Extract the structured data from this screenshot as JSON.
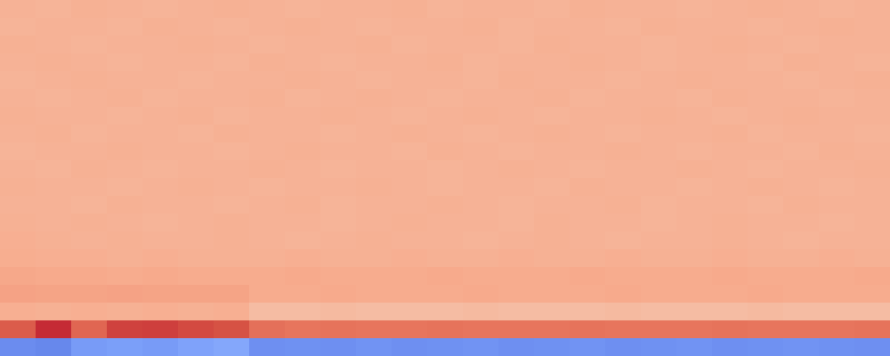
{
  "chart_data": {
    "type": "heatmap",
    "tick_labels": false,
    "zlim": [
      -1,
      1
    ],
    "z": [
      [
        0.36,
        0.35,
        0.37,
        0.36,
        0.35,
        0.36,
        0.37,
        0.36,
        0.35,
        0.36,
        0.36,
        0.37,
        0.35,
        0.36,
        0.36,
        0.35,
        0.37,
        0.36,
        0.36,
        0.35,
        0.36,
        0.37,
        0.36,
        0.35,
        0.36
      ],
      [
        0.35,
        0.36,
        0.36,
        0.35,
        0.37,
        0.36,
        0.35,
        0.36,
        0.37,
        0.36,
        0.35,
        0.36,
        0.36,
        0.37,
        0.35,
        0.36,
        0.36,
        0.35,
        0.37,
        0.36,
        0.36,
        0.35,
        0.36,
        0.37,
        0.36
      ],
      [
        0.37,
        0.36,
        0.35,
        0.36,
        0.36,
        0.37,
        0.36,
        0.35,
        0.36,
        0.36,
        0.37,
        0.35,
        0.36,
        0.36,
        0.35,
        0.37,
        0.36,
        0.36,
        0.35,
        0.36,
        0.37,
        0.36,
        0.35,
        0.36,
        0.36
      ],
      [
        0.36,
        0.37,
        0.36,
        0.35,
        0.36,
        0.36,
        0.35,
        0.37,
        0.36,
        0.35,
        0.36,
        0.36,
        0.37,
        0.35,
        0.36,
        0.36,
        0.37,
        0.36,
        0.35,
        0.36,
        0.36,
        0.35,
        0.37,
        0.36,
        0.35
      ],
      [
        0.35,
        0.36,
        0.37,
        0.36,
        0.36,
        0.35,
        0.36,
        0.36,
        0.37,
        0.36,
        0.35,
        0.36,
        0.36,
        0.35,
        0.37,
        0.36,
        0.36,
        0.35,
        0.36,
        0.37,
        0.36,
        0.36,
        0.35,
        0.36,
        0.37
      ],
      [
        0.36,
        0.35,
        0.36,
        0.37,
        0.35,
        0.36,
        0.36,
        0.37,
        0.35,
        0.36,
        0.37,
        0.36,
        0.35,
        0.36,
        0.36,
        0.37,
        0.35,
        0.36,
        0.36,
        0.35,
        0.37,
        0.36,
        0.36,
        0.35,
        0.36
      ],
      [
        0.37,
        0.36,
        0.36,
        0.35,
        0.36,
        0.37,
        0.35,
        0.36,
        0.36,
        0.37,
        0.36,
        0.35,
        0.36,
        0.37,
        0.36,
        0.35,
        0.36,
        0.36,
        0.37,
        0.36,
        0.35,
        0.36,
        0.37,
        0.36,
        0.36
      ],
      [
        0.36,
        0.37,
        0.35,
        0.36,
        0.36,
        0.35,
        0.37,
        0.36,
        0.36,
        0.35,
        0.36,
        0.37,
        0.36,
        0.35,
        0.36,
        0.37,
        0.36,
        0.35,
        0.36,
        0.36,
        0.37,
        0.35,
        0.36,
        0.36,
        0.35
      ],
      [
        0.35,
        0.36,
        0.36,
        0.37,
        0.36,
        0.36,
        0.35,
        0.36,
        0.37,
        0.36,
        0.36,
        0.35,
        0.37,
        0.36,
        0.35,
        0.36,
        0.36,
        0.37,
        0.36,
        0.35,
        0.36,
        0.36,
        0.35,
        0.37,
        0.36
      ],
      [
        0.36,
        0.35,
        0.37,
        0.36,
        0.35,
        0.36,
        0.36,
        0.37,
        0.36,
        0.35,
        0.36,
        0.36,
        0.35,
        0.36,
        0.37,
        0.36,
        0.35,
        0.36,
        0.36,
        0.37,
        0.36,
        0.35,
        0.36,
        0.36,
        0.37
      ],
      [
        0.37,
        0.36,
        0.36,
        0.35,
        0.36,
        0.37,
        0.36,
        0.35,
        0.36,
        0.36,
        0.37,
        0.36,
        0.35,
        0.36,
        0.36,
        0.35,
        0.37,
        0.36,
        0.36,
        0.35,
        0.36,
        0.37,
        0.36,
        0.35,
        0.36
      ],
      [
        0.36,
        0.36,
        0.35,
        0.37,
        0.36,
        0.36,
        0.35,
        0.36,
        0.37,
        0.35,
        0.36,
        0.36,
        0.37,
        0.36,
        0.35,
        0.36,
        0.36,
        0.37,
        0.35,
        0.36,
        0.36,
        0.35,
        0.37,
        0.36,
        0.36
      ],
      [
        0.37,
        0.36,
        0.37,
        0.36,
        0.35,
        0.36,
        0.37,
        0.36,
        0.36,
        0.35,
        0.36,
        0.37,
        0.36,
        0.36,
        0.35,
        0.37,
        0.36,
        0.36,
        0.35,
        0.36,
        0.37,
        0.36,
        0.36,
        0.35,
        0.36
      ],
      [
        0.38,
        0.37,
        0.36,
        0.37,
        0.36,
        0.36,
        0.37,
        0.36,
        0.35,
        0.36,
        0.37,
        0.36,
        0.36,
        0.35,
        0.36,
        0.37,
        0.36,
        0.35,
        0.36,
        0.36,
        0.37,
        0.36,
        0.35,
        0.36,
        0.36
      ],
      [
        0.39,
        0.38,
        0.38,
        0.37,
        0.38,
        0.37,
        0.37,
        0.37,
        0.38,
        0.37,
        0.37,
        0.38,
        0.37,
        0.37,
        0.38,
        0.37,
        0.37,
        0.38,
        0.37,
        0.37,
        0.38,
        0.37,
        0.37,
        0.38,
        0.37
      ],
      [
        0.42,
        0.41,
        0.41,
        0.4,
        0.41,
        0.4,
        0.4,
        0.4,
        0.41,
        0.4,
        0.4,
        0.4,
        0.41,
        0.4,
        0.4,
        0.4,
        0.41,
        0.4,
        0.4,
        0.4,
        0.41,
        0.4,
        0.4,
        0.4,
        0.41
      ],
      [
        0.45,
        0.44,
        0.44,
        0.45,
        0.44,
        0.44,
        0.44,
        0.4,
        0.4,
        0.41,
        0.4,
        0.4,
        0.4,
        0.41,
        0.4,
        0.4,
        0.4,
        0.41,
        0.4,
        0.4,
        0.4,
        0.41,
        0.4,
        0.4,
        0.4
      ],
      [
        0.38,
        0.37,
        0.38,
        0.37,
        0.38,
        0.37,
        0.38,
        0.3,
        0.3,
        0.31,
        0.3,
        0.3,
        0.3,
        0.31,
        0.3,
        0.3,
        0.3,
        0.31,
        0.3,
        0.3,
        0.3,
        0.31,
        0.3,
        0.3,
        0.3
      ],
      [
        0.76,
        0.9,
        0.72,
        0.84,
        0.85,
        0.82,
        0.8,
        0.68,
        0.66,
        0.67,
        0.66,
        0.66,
        0.67,
        0.66,
        0.66,
        0.66,
        0.67,
        0.66,
        0.66,
        0.66,
        0.67,
        0.66,
        0.66,
        0.66,
        0.67
      ],
      [
        -0.7,
        -0.72,
        -0.62,
        -0.6,
        -0.62,
        -0.58,
        -0.55,
        -0.68,
        -0.67,
        -0.68,
        -0.66,
        -0.68,
        -0.67,
        -0.66,
        -0.68,
        -0.67,
        -0.66,
        -0.68,
        -0.67,
        -0.66,
        -0.68,
        -0.67,
        -0.66,
        -0.67,
        -0.68
      ]
    ]
  }
}
